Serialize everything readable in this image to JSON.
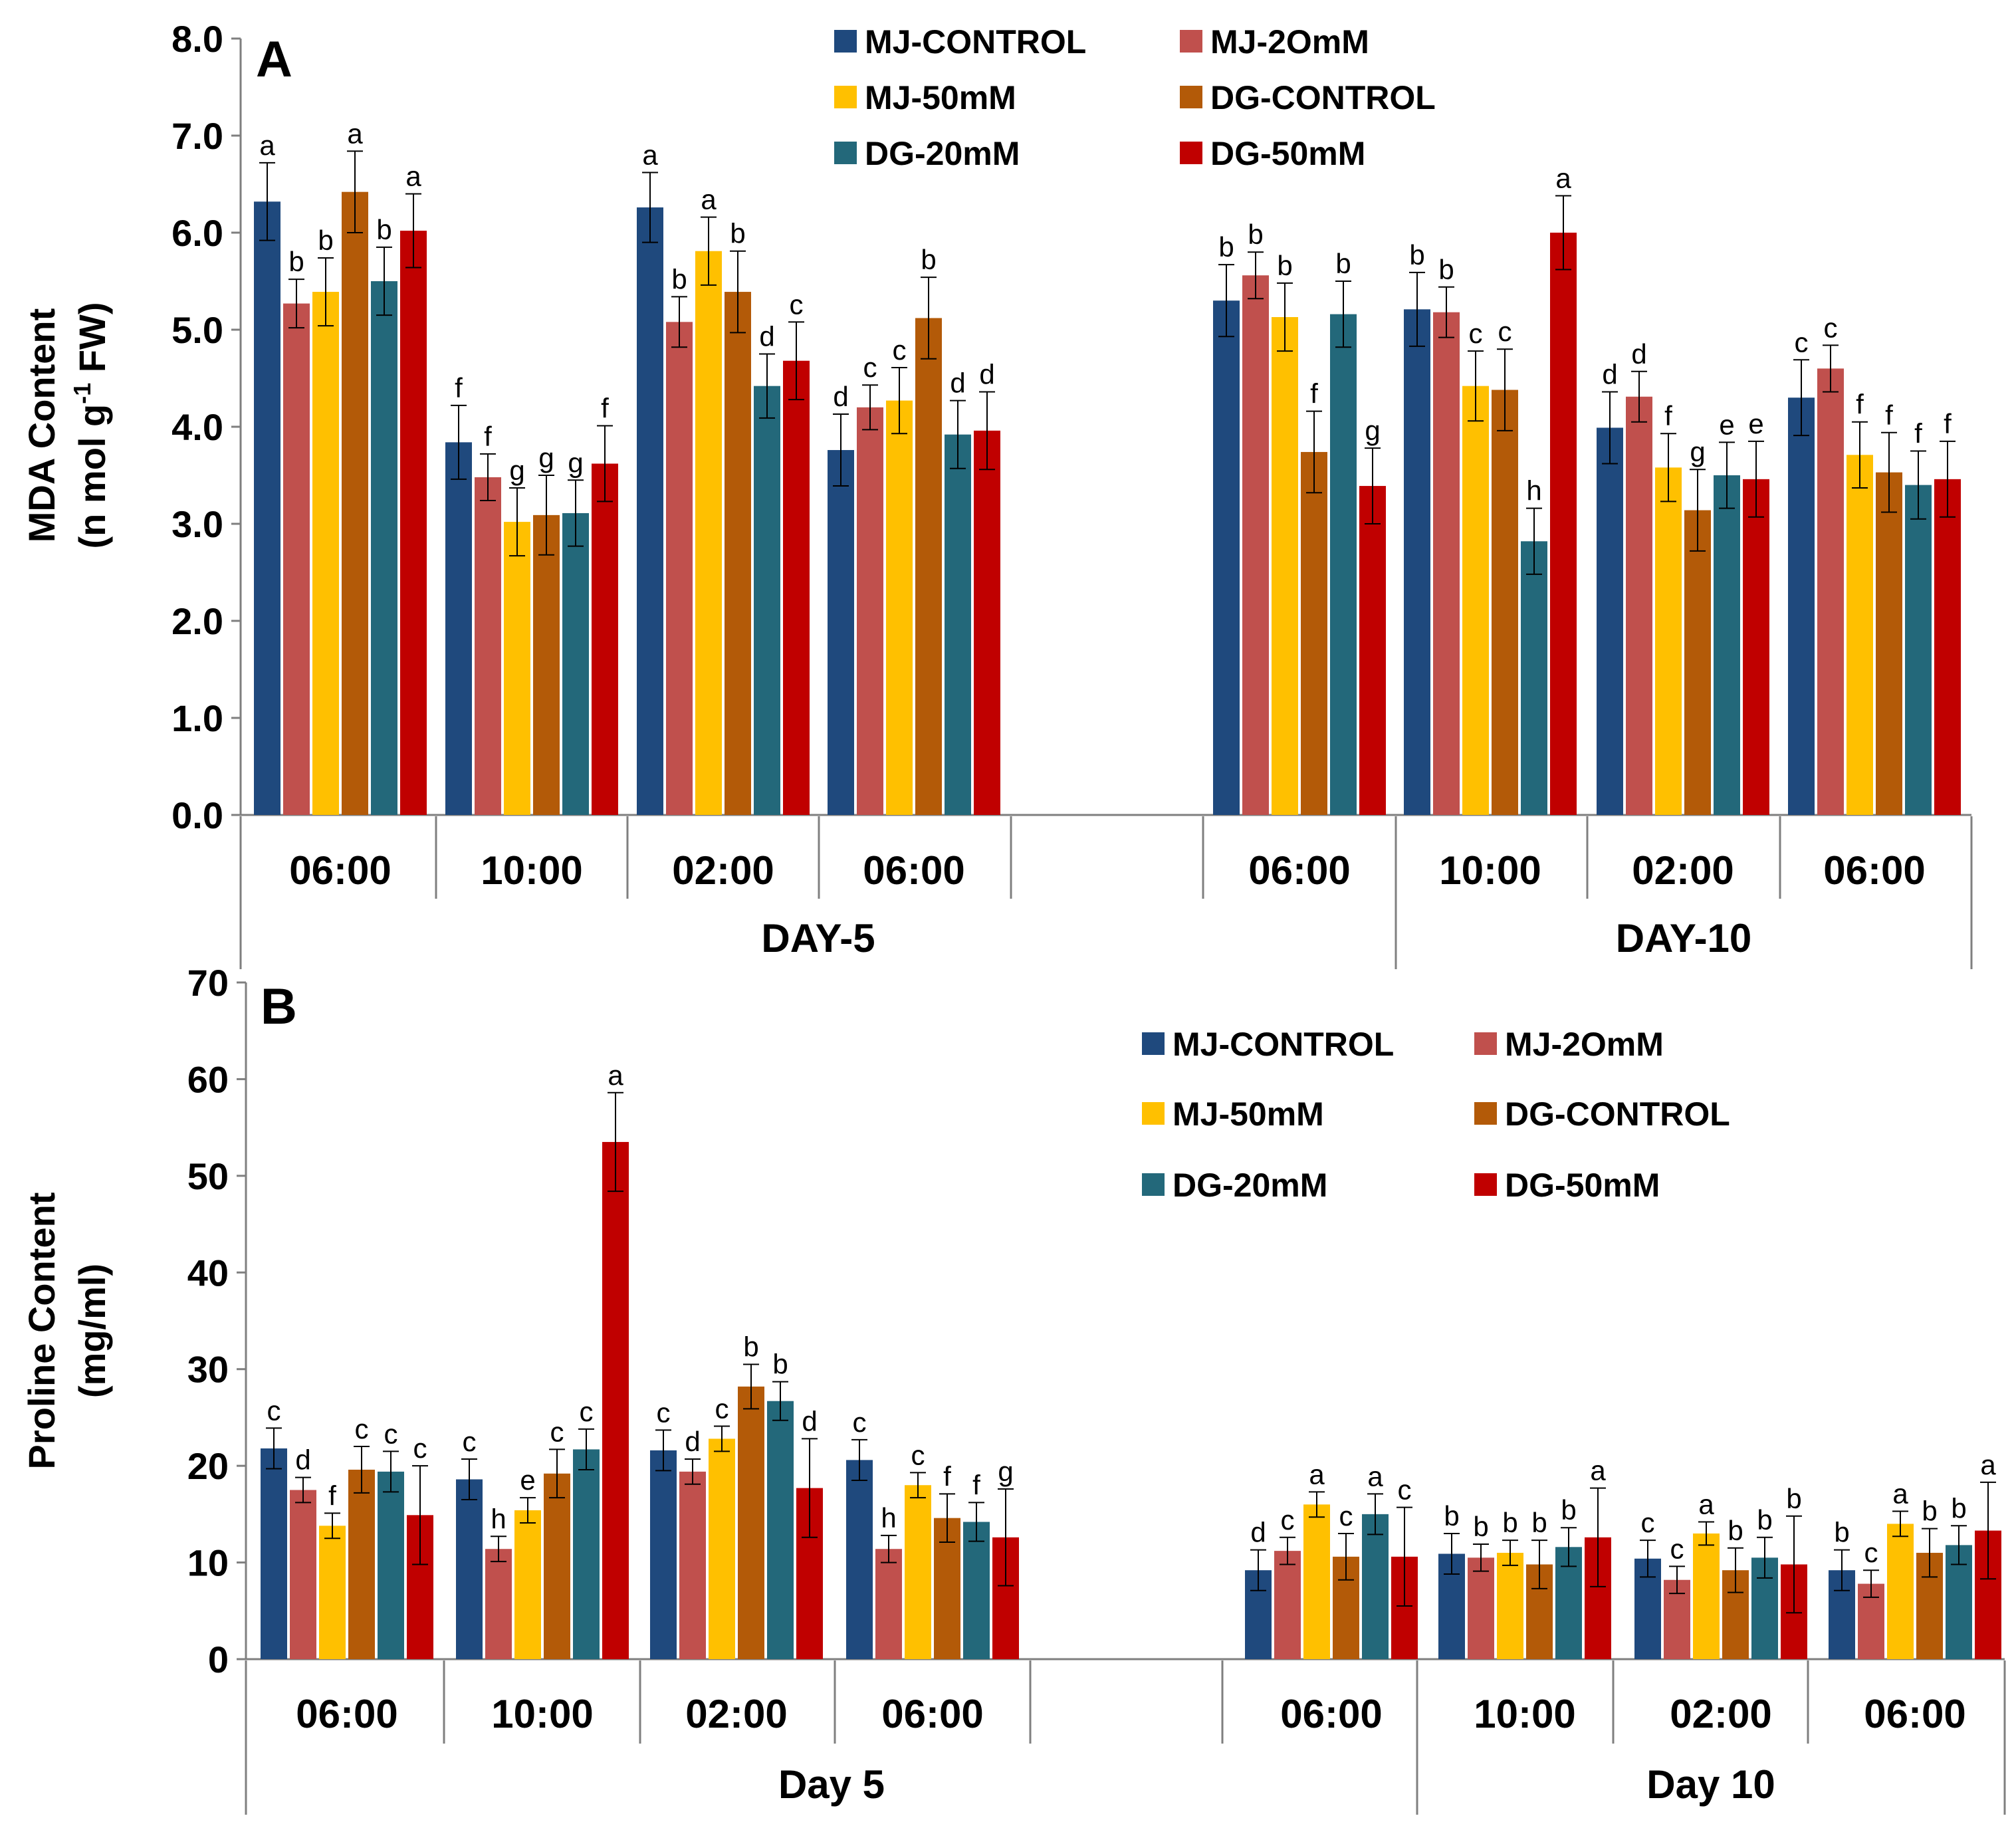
{
  "chart_data": [
    {
      "type": "bar",
      "panel_label": "A",
      "ylabel_line1": "MDA Content",
      "ylabel_line2": "(n mol g",
      "ylabel_sup": "-1",
      "ylabel_tail": "  FW)",
      "ylim": [
        0,
        8
      ],
      "yticks": [
        "0.0",
        "1.0",
        "2.0",
        "3.0",
        "4.0",
        "5.0",
        "6.0",
        "7.0",
        "8.0"
      ],
      "categories": [
        "06:00",
        "10:00",
        "02:00",
        "06:00",
        "",
        "06:00",
        "10:00",
        "02:00",
        "06:00"
      ],
      "groups": [
        "DAY-5",
        "DAY-10"
      ],
      "legend": [
        "MJ-CONTROL",
        "MJ-2OmM",
        "MJ-50mM",
        "DG-CONTROL",
        "DG-20mM",
        "DG-50mM"
      ],
      "series": [
        {
          "name": "MJ-CONTROL",
          "values": [
            6.32,
            3.84,
            6.26,
            3.76,
            null,
            5.3,
            5.21,
            3.99,
            4.3
          ],
          "errors": [
            0.4,
            0.38,
            0.36,
            0.37,
            null,
            0.37,
            0.38,
            0.37,
            0.39
          ],
          "labels": [
            "a",
            "f",
            "a",
            "d",
            "",
            "b",
            "b",
            "d",
            "c"
          ]
        },
        {
          "name": "MJ-2OmM",
          "values": [
            5.27,
            3.48,
            5.08,
            4.2,
            null,
            5.56,
            5.18,
            4.31,
            4.6
          ],
          "errors": [
            0.25,
            0.24,
            0.26,
            0.23,
            null,
            0.24,
            0.26,
            0.26,
            0.24
          ],
          "labels": [
            "b",
            "f",
            "b",
            "c",
            "",
            "b",
            "b",
            "d",
            "c"
          ]
        },
        {
          "name": "MJ-50mM",
          "values": [
            5.39,
            3.02,
            5.81,
            4.27,
            null,
            5.13,
            4.42,
            3.58,
            3.71
          ],
          "errors": [
            0.35,
            0.35,
            0.35,
            0.34,
            null,
            0.35,
            0.36,
            0.35,
            0.34
          ],
          "labels": [
            "b",
            "g",
            "a",
            "c",
            "",
            "b",
            "c",
            "f",
            "f"
          ]
        },
        {
          "name": "DG-CONTROL",
          "values": [
            6.42,
            3.09,
            5.39,
            5.12,
            null,
            3.74,
            4.38,
            3.14,
            3.53
          ],
          "errors": [
            0.42,
            0.41,
            0.42,
            0.42,
            null,
            0.42,
            0.42,
            0.42,
            0.41
          ],
          "labels": [
            "a",
            "g",
            "b",
            "b",
            "",
            "f",
            "c",
            "g",
            "f"
          ]
        },
        {
          "name": "DG-20mM",
          "values": [
            5.5,
            3.11,
            4.42,
            3.92,
            null,
            5.16,
            2.82,
            3.5,
            3.4
          ],
          "errors": [
            0.35,
            0.34,
            0.33,
            0.35,
            null,
            0.34,
            0.34,
            0.34,
            0.35
          ],
          "labels": [
            "b",
            "g",
            "d",
            "d",
            "",
            "b",
            "h",
            "e",
            "f"
          ]
        },
        {
          "name": "DG-50mM",
          "values": [
            6.02,
            3.62,
            4.68,
            3.96,
            null,
            3.39,
            6.0,
            3.46,
            3.46
          ],
          "errors": [
            0.38,
            0.39,
            0.4,
            0.4,
            null,
            0.39,
            0.38,
            0.39,
            0.39
          ],
          "labels": [
            "a",
            "f",
            "c",
            "d",
            "",
            "g",
            "a",
            "e",
            "f"
          ]
        }
      ]
    },
    {
      "type": "bar",
      "panel_label": "B",
      "ylabel_line1": "Proline Content",
      "ylabel_line2": "(mg/ml)",
      "ylim": [
        0,
        70
      ],
      "yticks": [
        "0",
        "10",
        "20",
        "30",
        "40",
        "50",
        "60",
        "70"
      ],
      "categories": [
        "06:00",
        "10:00",
        "02:00",
        "06:00",
        "",
        "06:00",
        "10:00",
        "02:00",
        "06:00"
      ],
      "groups": [
        "Day 5",
        "Day 10"
      ],
      "legend": [
        "MJ-CONTROL",
        "MJ-2OmM",
        "MJ-50mM",
        "DG-CONTROL",
        "DG-20mM",
        "DG-50mM"
      ],
      "series": [
        {
          "name": "MJ-CONTROL",
          "values": [
            21.8,
            18.6,
            21.6,
            20.6,
            null,
            9.2,
            10.9,
            10.4,
            9.2
          ],
          "errors": [
            2.1,
            2.1,
            2.1,
            2.1,
            null,
            2.1,
            2.1,
            1.9,
            2.1
          ],
          "labels": [
            "c",
            "c",
            "c",
            "c",
            "",
            "d",
            "b",
            "c",
            "b"
          ]
        },
        {
          "name": "MJ-2OmM",
          "values": [
            17.5,
            11.4,
            19.4,
            11.4,
            null,
            11.2,
            10.5,
            8.2,
            7.8
          ],
          "errors": [
            1.3,
            1.3,
            1.3,
            1.4,
            null,
            1.4,
            1.4,
            1.4,
            1.4
          ],
          "labels": [
            "d",
            "h",
            "d",
            "h",
            "",
            "c",
            "b",
            "c",
            "c"
          ]
        },
        {
          "name": "MJ-50mM",
          "values": [
            13.8,
            15.4,
            22.8,
            18.0,
            null,
            16.0,
            11.0,
            13.0,
            14.0
          ],
          "errors": [
            1.3,
            1.3,
            1.3,
            1.3,
            null,
            1.3,
            1.3,
            1.2,
            1.3
          ],
          "labels": [
            "f",
            "e",
            "c",
            "c",
            "",
            "a",
            "b",
            "a",
            "a"
          ]
        },
        {
          "name": "DG-CONTROL",
          "values": [
            19.6,
            19.2,
            28.2,
            14.6,
            null,
            10.6,
            9.8,
            9.2,
            11.0
          ],
          "errors": [
            2.4,
            2.5,
            2.3,
            2.5,
            null,
            2.4,
            2.5,
            2.3,
            2.5
          ],
          "labels": [
            "c",
            "c",
            "b",
            "f",
            "",
            "c",
            "b",
            "b",
            "b"
          ]
        },
        {
          "name": "DG-20mM",
          "values": [
            19.4,
            21.7,
            26.7,
            14.2,
            null,
            15.0,
            11.6,
            10.5,
            11.8
          ],
          "errors": [
            2.1,
            2.1,
            2.0,
            2.0,
            null,
            2.1,
            2.0,
            2.1,
            2.0
          ],
          "labels": [
            "c",
            "c",
            "b",
            "f",
            "",
            "a",
            "b",
            "b",
            "b"
          ]
        },
        {
          "name": "DG-50mM",
          "values": [
            14.9,
            53.5,
            17.7,
            12.6,
            null,
            10.6,
            12.6,
            9.8,
            13.3
          ],
          "errors": [
            5.1,
            5.1,
            5.1,
            5.0,
            null,
            5.1,
            5.1,
            5.0,
            5.0
          ],
          "labels": [
            "c",
            "a",
            "d",
            "g",
            "",
            "c",
            "a",
            "b",
            "a"
          ]
        }
      ]
    }
  ],
  "colors": [
    "#1f497d",
    "#c0504d",
    "#ffc000",
    "#b35a08",
    "#23687a",
    "#c00000"
  ]
}
